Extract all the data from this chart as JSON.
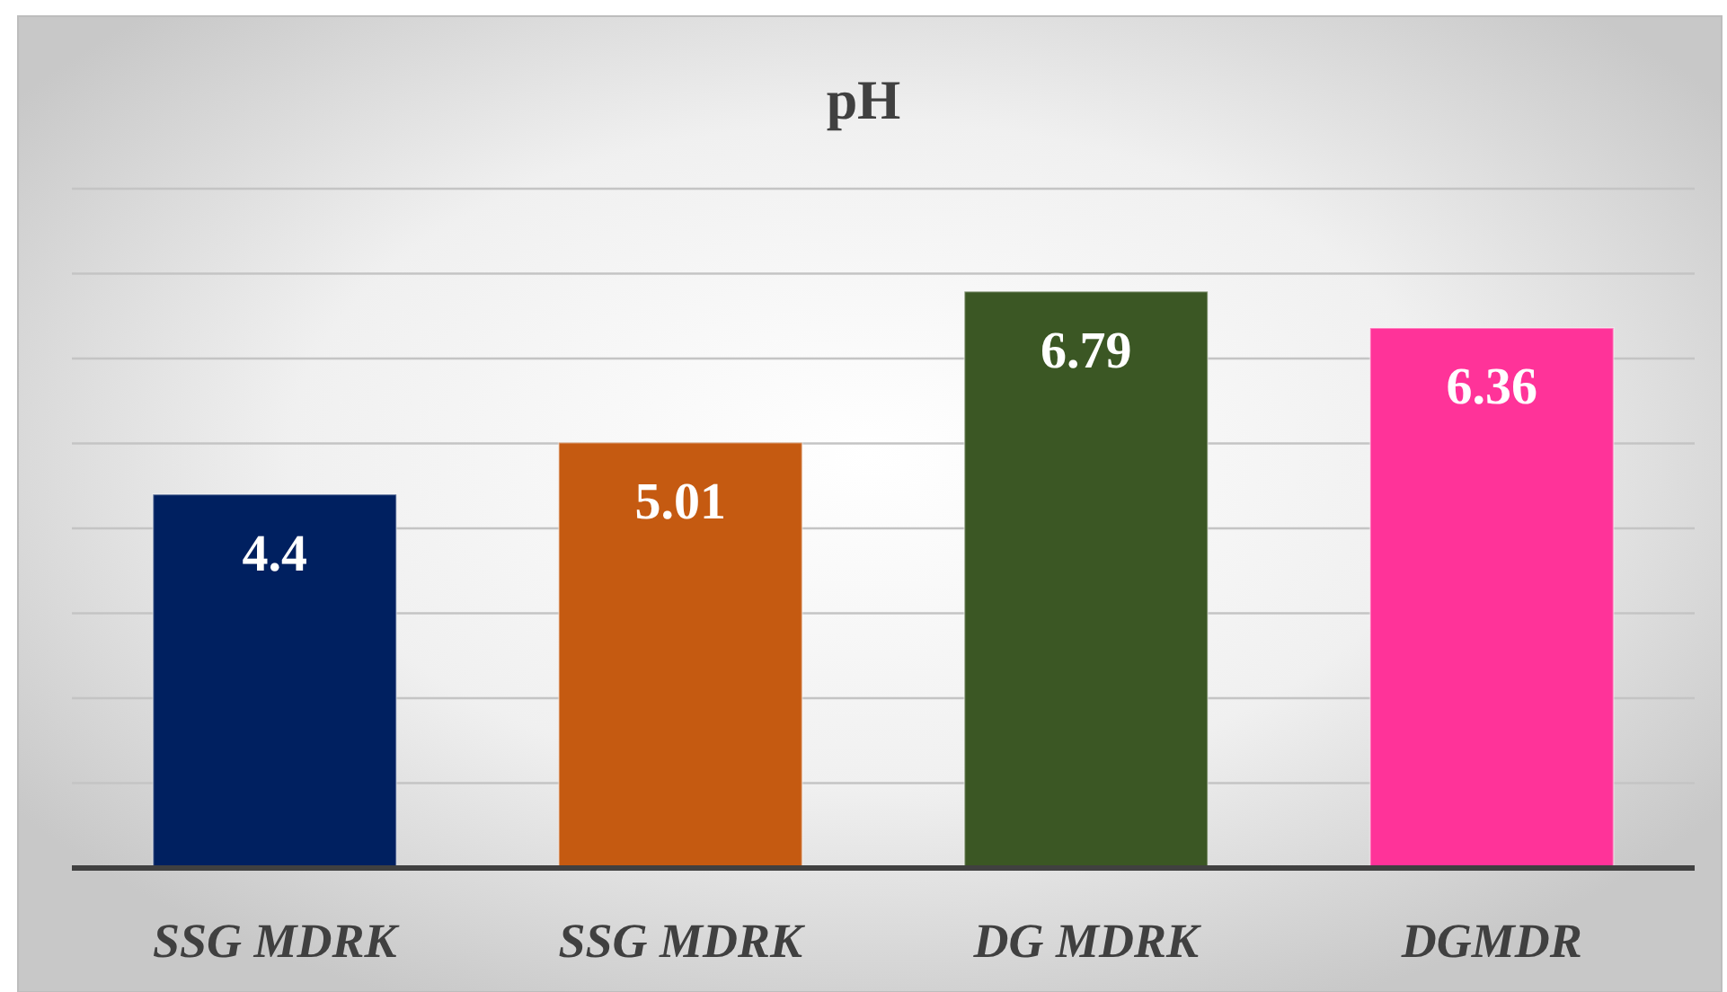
{
  "chart_data": {
    "type": "bar",
    "title": "pH",
    "categories": [
      "SSG MDRK",
      "SSG MDRK",
      "DG MDRK",
      "DGMDR"
    ],
    "values": [
      4.4,
      5.01,
      6.79,
      6.36
    ],
    "colors": [
      "#002060",
      "#c55a11",
      "#3b5724",
      "#ff3399"
    ],
    "ylim": [
      0,
      8
    ],
    "yticks": [
      {
        "value": 0,
        "label": null
      },
      {
        "value": 1,
        "label": null
      },
      {
        "value": 2,
        "label": null
      },
      {
        "value": 3,
        "label": null
      },
      {
        "value": 4,
        "label": null
      },
      {
        "value": 5,
        "label": null
      },
      {
        "value": 6,
        "label": null
      },
      {
        "value": 7,
        "label": null
      },
      {
        "value": 8,
        "label": null
      }
    ],
    "grid": "y",
    "tick_labels": "x",
    "data_labels": true
  }
}
